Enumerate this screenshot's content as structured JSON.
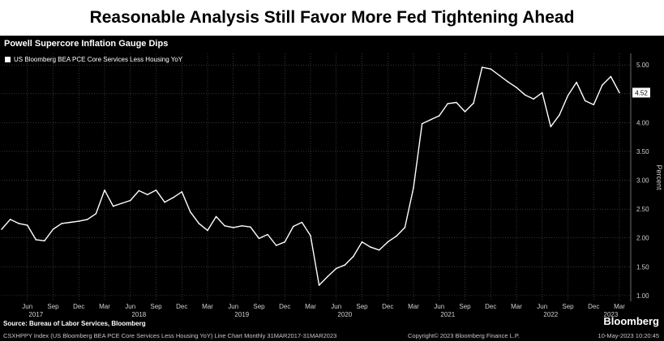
{
  "headline": "Reasonable Analysis Still Favor More Fed Tightening Ahead",
  "brand": "Bloomberg",
  "colors": {
    "background": "#000000",
    "line": "#ffffff",
    "grid": "#5a5a5a",
    "headline_bg": "#ffffff"
  },
  "chart_data": {
    "type": "line",
    "title": "Powell Supercore Inflation Gauge Dips",
    "ylabel": "Percent",
    "ylim": [
      0.9,
      5.2
    ],
    "yticks": [
      "1.00",
      "1.50",
      "2.00",
      "2.50",
      "3.00",
      "3.50",
      "4.00",
      "4.50",
      "5.00"
    ],
    "ytick_values": [
      1.0,
      1.5,
      2.0,
      2.5,
      3.0,
      3.5,
      4.0,
      4.5,
      5.0
    ],
    "x_start": "2017-03",
    "x_end": "2023-03",
    "month_labels": [
      {
        "month": "2017-06",
        "label": "Jun"
      },
      {
        "month": "2017-09",
        "label": "Sep"
      },
      {
        "month": "2017-12",
        "label": "Dec"
      },
      {
        "month": "2018-03",
        "label": "Mar"
      },
      {
        "month": "2018-06",
        "label": "Jun"
      },
      {
        "month": "2018-09",
        "label": "Sep"
      },
      {
        "month": "2018-12",
        "label": "Dec"
      },
      {
        "month": "2019-03",
        "label": "Mar"
      },
      {
        "month": "2019-06",
        "label": "Jun"
      },
      {
        "month": "2019-09",
        "label": "Sep"
      },
      {
        "month": "2019-12",
        "label": "Dec"
      },
      {
        "month": "2020-03",
        "label": "Mar"
      },
      {
        "month": "2020-06",
        "label": "Jun"
      },
      {
        "month": "2020-09",
        "label": "Sep"
      },
      {
        "month": "2020-12",
        "label": "Dec"
      },
      {
        "month": "2021-03",
        "label": "Mar"
      },
      {
        "month": "2021-06",
        "label": "Jun"
      },
      {
        "month": "2021-09",
        "label": "Sep"
      },
      {
        "month": "2021-12",
        "label": "Dec"
      },
      {
        "month": "2022-03",
        "label": "Mar"
      },
      {
        "month": "2022-06",
        "label": "Jun"
      },
      {
        "month": "2022-09",
        "label": "Sep"
      },
      {
        "month": "2022-12",
        "label": "Dec"
      },
      {
        "month": "2023-03",
        "label": "Mar"
      }
    ],
    "year_labels": [
      {
        "month": "2017-07",
        "label": "2017"
      },
      {
        "month": "2018-07",
        "label": "2018"
      },
      {
        "month": "2019-07",
        "label": "2019"
      },
      {
        "month": "2020-07",
        "label": "2020"
      },
      {
        "month": "2021-07",
        "label": "2021"
      },
      {
        "month": "2022-07",
        "label": "2022"
      },
      {
        "month": "2023-02",
        "label": "2023"
      }
    ],
    "series": [
      {
        "name": "US Bloomberg BEA PCE Core Services Less Housing YoY",
        "x": [
          "2017-03",
          "2017-04",
          "2017-05",
          "2017-06",
          "2017-07",
          "2017-08",
          "2017-09",
          "2017-10",
          "2017-11",
          "2017-12",
          "2018-01",
          "2018-02",
          "2018-03",
          "2018-04",
          "2018-05",
          "2018-06",
          "2018-07",
          "2018-08",
          "2018-09",
          "2018-10",
          "2018-11",
          "2018-12",
          "2019-01",
          "2019-02",
          "2019-03",
          "2019-04",
          "2019-05",
          "2019-06",
          "2019-07",
          "2019-08",
          "2019-09",
          "2019-10",
          "2019-11",
          "2019-12",
          "2020-01",
          "2020-02",
          "2020-03",
          "2020-04",
          "2020-05",
          "2020-06",
          "2020-07",
          "2020-08",
          "2020-09",
          "2020-10",
          "2020-11",
          "2020-12",
          "2021-01",
          "2021-02",
          "2021-03",
          "2021-04",
          "2021-05",
          "2021-06",
          "2021-07",
          "2021-08",
          "2021-09",
          "2021-10",
          "2021-11",
          "2021-12",
          "2022-01",
          "2022-02",
          "2022-03",
          "2022-04",
          "2022-05",
          "2022-06",
          "2022-07",
          "2022-08",
          "2022-09",
          "2022-10",
          "2022-11",
          "2022-12",
          "2023-01",
          "2023-02",
          "2023-03"
        ],
        "values": [
          2.15,
          2.32,
          2.25,
          2.22,
          1.97,
          1.95,
          2.15,
          2.25,
          2.27,
          2.29,
          2.32,
          2.42,
          2.83,
          2.55,
          2.6,
          2.65,
          2.82,
          2.75,
          2.83,
          2.62,
          2.7,
          2.8,
          2.45,
          2.25,
          2.13,
          2.37,
          2.21,
          2.18,
          2.21,
          2.19,
          1.99,
          2.06,
          1.87,
          1.93,
          2.2,
          2.27,
          2.04,
          1.18,
          1.33,
          1.47,
          1.53,
          1.68,
          1.93,
          1.84,
          1.79,
          1.93,
          2.03,
          2.18,
          2.87,
          3.98,
          4.05,
          4.12,
          4.33,
          4.35,
          4.19,
          4.34,
          4.96,
          4.93,
          4.82,
          4.71,
          4.61,
          4.48,
          4.41,
          4.52,
          3.93,
          4.13,
          4.47,
          4.7,
          4.38,
          4.31,
          4.65,
          4.8,
          4.52
        ]
      }
    ],
    "last_value_label": "4.52",
    "source": "Source: Bureau of Labor Services, Bloomberg",
    "footer_left": "CSXHPPY Index (US Bloomberg BEA PCE Core Services Less Housing YoY) Line Chart  Monthly 31MAR2017-31MAR2023",
    "footer_center": "Copyright© 2023 Bloomberg Finance L.P.",
    "footer_right": "10-May-2023 10:20:45"
  }
}
